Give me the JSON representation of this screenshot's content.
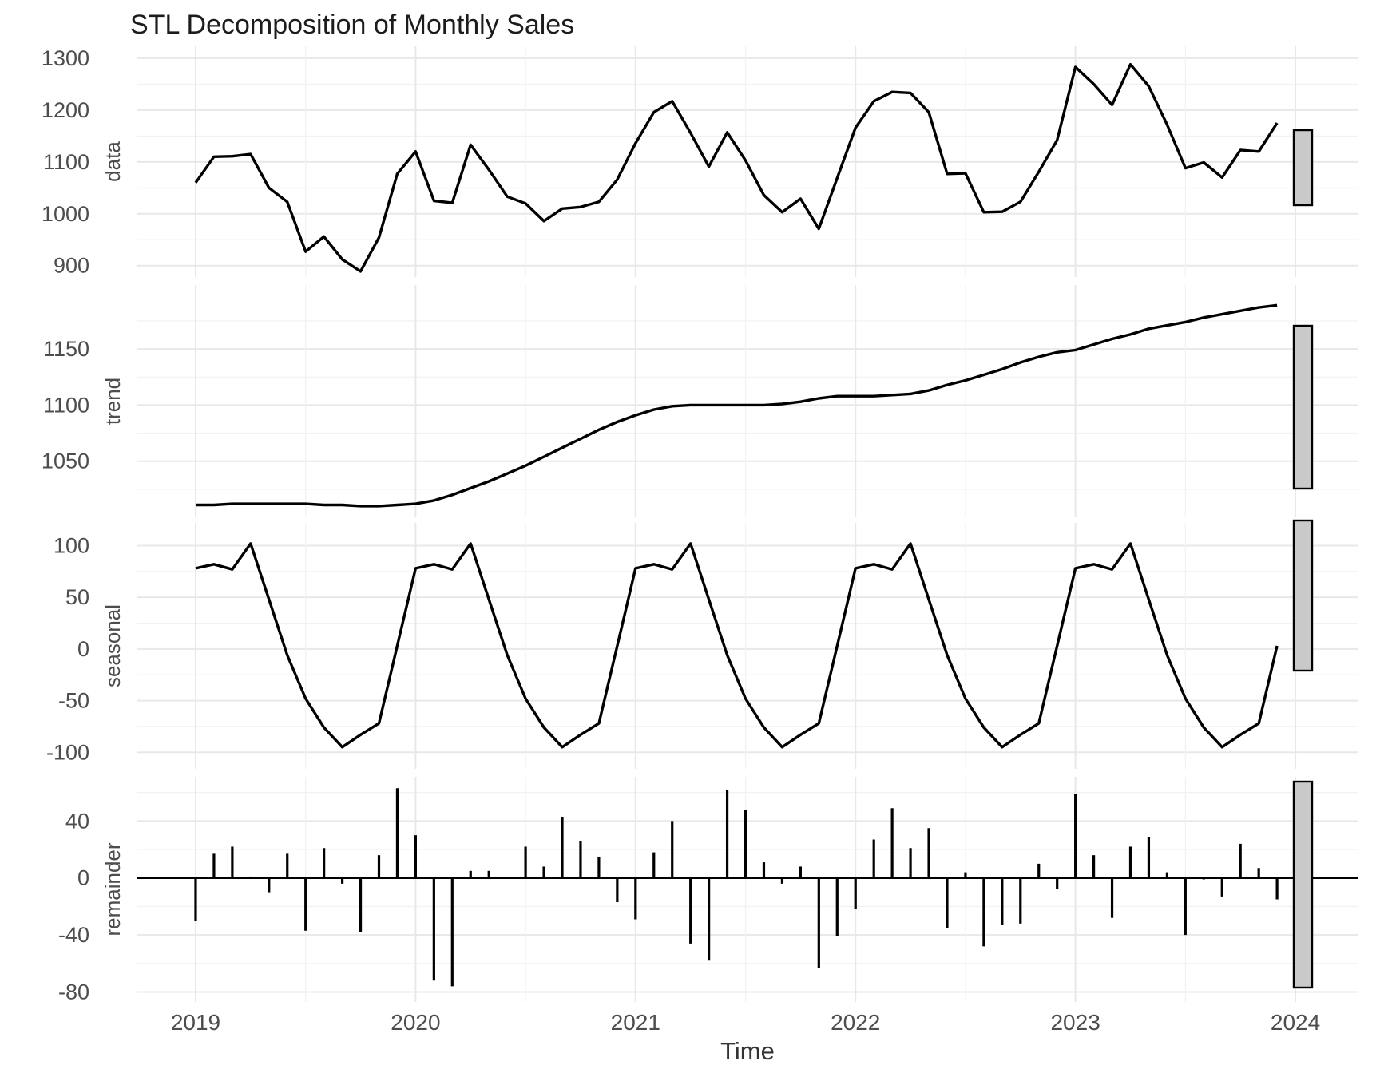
{
  "title": "STL Decomposition of Monthly Sales",
  "x_axis_title": "Time",
  "colors": {
    "background": "#ffffff",
    "series_line": "#000000",
    "grid_major": "#e8e8e8",
    "grid_minor": "#f2f2f2",
    "tick_text": "#4d4d4d",
    "title_text": "#1c1c1c",
    "range_bar_fill": "#c9c9c9",
    "range_bar_stroke": "#000000"
  },
  "chart_data": {
    "type": "line",
    "title": "STL Decomposition of Monthly Sales",
    "xlabel": "Time",
    "ylabel": "",
    "legend": "none",
    "grid": {
      "major": true,
      "minor": true
    },
    "frequency": "monthly",
    "x_start_year": 2019,
    "n_points": 60,
    "x_tick_values": [
      2019,
      2020,
      2021,
      2022,
      2023,
      2024
    ],
    "x_tick_labels": [
      "2019",
      "2020",
      "2021",
      "2022",
      "2023",
      "2024"
    ],
    "x_minor_ticks": [
      2019.5,
      2020.5,
      2021.5,
      2022.5,
      2023.5
    ],
    "x_range": [
      2018.735,
      2024.283
    ],
    "seasonal_pattern_12": [
      78,
      82,
      77,
      102,
      48,
      -6,
      -48,
      -76,
      -95,
      -83,
      -72,
      3
    ],
    "panels": [
      {
        "name": "data",
        "plot_type": "line",
        "yticks": [
          900,
          1000,
          1100,
          1200,
          1300
        ],
        "yminor": [
          950,
          1050,
          1150,
          1250
        ],
        "yrange": [
          878,
          1323
        ],
        "values": [
          1060,
          1110,
          1111,
          1115,
          1050,
          1023,
          927,
          956,
          912,
          889,
          954,
          1077,
          1120,
          1025,
          1021,
          1133,
          1085,
          1033,
          1020,
          986,
          1010,
          1013,
          1023,
          1066,
          1136,
          1196,
          1217,
          1156,
          1091,
          1157,
          1103,
          1036,
          1003,
          1029,
          971,
          1069,
          1166,
          1217,
          1235,
          1233,
          1196,
          1077,
          1078,
          1003,
          1004,
          1023,
          1081,
          1142,
          1283,
          1250,
          1210,
          1288,
          1246,
          1172,
          1088,
          1099,
          1070,
          1123,
          1120,
          1175
        ]
      },
      {
        "name": "trend",
        "plot_type": "line",
        "yticks": [
          1050,
          1100,
          1150
        ],
        "yminor": [
          1025,
          1075,
          1125,
          1175
        ],
        "yrange": [
          1000,
          1207
        ],
        "values": [
          1011,
          1011,
          1012,
          1012,
          1012,
          1012,
          1012,
          1011,
          1011,
          1010,
          1010,
          1011,
          1012,
          1015,
          1020,
          1026,
          1032,
          1039,
          1046,
          1054,
          1062,
          1070,
          1078,
          1085,
          1091,
          1096,
          1099,
          1100,
          1100,
          1100,
          1100,
          1100,
          1101,
          1103,
          1106,
          1108,
          1108,
          1108,
          1109,
          1110,
          1113,
          1118,
          1122,
          1127,
          1132,
          1138,
          1143,
          1147,
          1149,
          1154,
          1159,
          1163,
          1168,
          1171,
          1174,
          1178,
          1181,
          1184,
          1187,
          1189
        ]
      },
      {
        "name": "seasonal",
        "plot_type": "line",
        "yticks": [
          -100,
          -50,
          0,
          50,
          100
        ],
        "yminor": [
          -75,
          -25,
          25,
          75
        ],
        "yrange": [
          -116,
          122
        ],
        "values": [
          78,
          82,
          77,
          102,
          48,
          -6,
          -48,
          -76,
          -95,
          -83,
          -72,
          3,
          78,
          82,
          77,
          102,
          48,
          -6,
          -48,
          -76,
          -95,
          -83,
          -72,
          3,
          78,
          82,
          77,
          102,
          48,
          -6,
          -48,
          -76,
          -95,
          -83,
          -72,
          3,
          78,
          82,
          77,
          102,
          48,
          -6,
          -48,
          -76,
          -95,
          -83,
          -72,
          3,
          78,
          82,
          77,
          102,
          48,
          -6,
          -48,
          -76,
          -95,
          -83,
          -72,
          3
        ]
      },
      {
        "name": "remainder",
        "plot_type": "bar",
        "yticks": [
          -80,
          -40,
          0,
          40
        ],
        "yminor": [
          -60,
          -20,
          20,
          60
        ],
        "yrange": [
          -87,
          71
        ],
        "values": [
          -30,
          17,
          22,
          1,
          -10,
          17,
          -37,
          21,
          -4,
          -38,
          16,
          63,
          30,
          -72,
          -76,
          5,
          5,
          0,
          22,
          8,
          43,
          26,
          15,
          -17,
          -29,
          18,
          40,
          -46,
          -58,
          62,
          48,
          11,
          -4,
          8,
          -63,
          -41,
          -22,
          27,
          49,
          21,
          35,
          -35,
          4,
          -48,
          -33,
          -32,
          10,
          -8,
          59,
          16,
          -28,
          22,
          29,
          4,
          -40,
          -1,
          -13,
          24,
          7,
          -15
        ]
      }
    ],
    "range_bars_shown": true
  }
}
